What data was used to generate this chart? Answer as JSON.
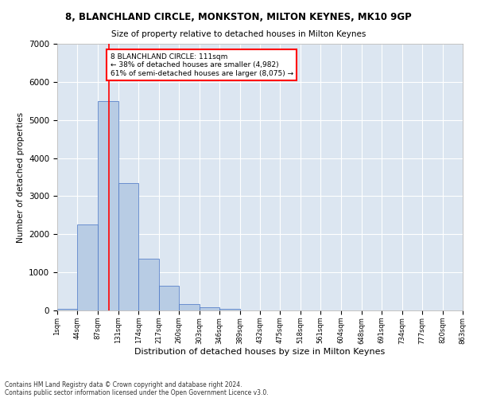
{
  "title1": "8, BLANCHLAND CIRCLE, MONKSTON, MILTON KEYNES, MK10 9GP",
  "title2": "Size of property relative to detached houses in Milton Keynes",
  "xlabel": "Distribution of detached houses by size in Milton Keynes",
  "ylabel": "Number of detached properties",
  "footnote1": "Contains HM Land Registry data © Crown copyright and database right 2024.",
  "footnote2": "Contains public sector information licensed under the Open Government Licence v3.0.",
  "bin_edges": [
    1,
    44,
    87,
    131,
    174,
    217,
    260,
    303,
    346,
    389,
    432,
    475,
    518,
    561,
    604,
    648,
    691,
    734,
    777,
    820,
    863
  ],
  "bin_labels": [
    "1sqm",
    "44sqm",
    "87sqm",
    "131sqm",
    "174sqm",
    "217sqm",
    "260sqm",
    "303sqm",
    "346sqm",
    "389sqm",
    "432sqm",
    "475sqm",
    "518sqm",
    "561sqm",
    "604sqm",
    "648sqm",
    "691sqm",
    "734sqm",
    "777sqm",
    "820sqm",
    "863sqm"
  ],
  "counts": [
    50,
    2250,
    5500,
    3350,
    1350,
    650,
    175,
    75,
    50,
    10,
    5,
    2,
    1,
    0,
    0,
    0,
    0,
    0,
    0,
    0
  ],
  "bar_color": "#b8cce4",
  "bar_edge_color": "#4472c4",
  "background_color": "#dce6f1",
  "grid_color": "#ffffff",
  "vline_x": 111,
  "vline_color": "#ff0000",
  "annotation_line1": "8 BLANCHLAND CIRCLE: 111sqm",
  "annotation_line2": "← 38% of detached houses are smaller (4,982)",
  "annotation_line3": "61% of semi-detached houses are larger (8,075) →",
  "annotation_box_color": "#ffffff",
  "annotation_box_edge": "#ff0000",
  "ylim": [
    0,
    7000
  ],
  "yticks": [
    0,
    1000,
    2000,
    3000,
    4000,
    5000,
    6000,
    7000
  ]
}
